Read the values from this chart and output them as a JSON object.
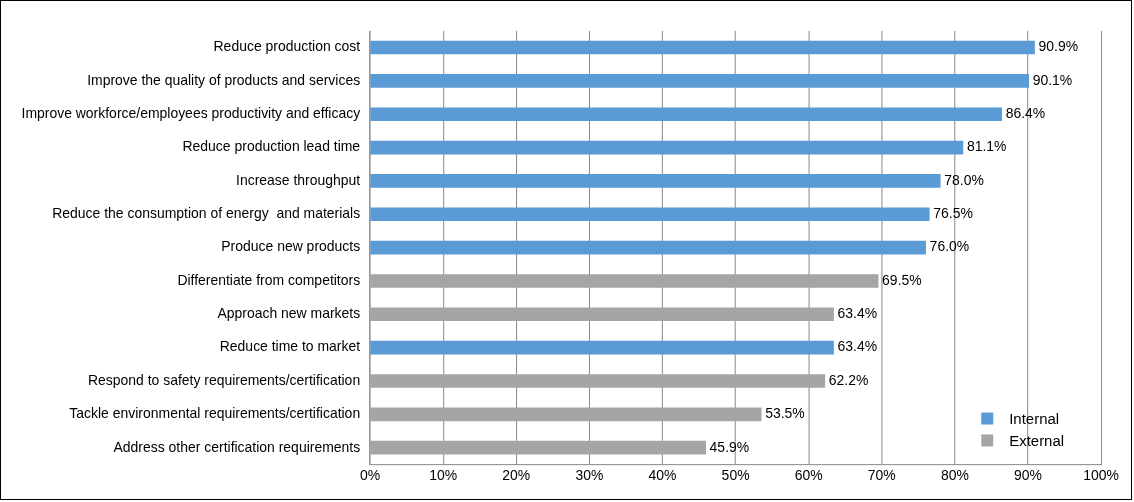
{
  "chart_data": {
    "type": "bar",
    "orientation": "horizontal",
    "categories": [
      "Reduce production cost",
      "Improve the quality of products and services",
      "Improve workforce/employees productivity and efficacy",
      "Reduce production lead time",
      "Increase throughput",
      "Reduce the consumption of energy  and materials",
      "Produce new products",
      "Differentiate from competitors",
      "Approach new markets",
      "Reduce time to market",
      "Respond to safety requirements/certification",
      "Tackle environmental requirements/certification",
      "Address other certification requirements"
    ],
    "series": [
      {
        "name": "Internal",
        "color": "#5b9bd5",
        "values": [
          90.9,
          90.1,
          86.4,
          81.1,
          78.0,
          76.5,
          76.0,
          null,
          null,
          63.4,
          null,
          null,
          null
        ],
        "value_labels": [
          "90.9%",
          "90.1%",
          "86.4%",
          "81.1%",
          "78.0%",
          "76.5%",
          "76.0%",
          null,
          null,
          "63.4%",
          null,
          null,
          null
        ]
      },
      {
        "name": "External",
        "color": "#a5a5a5",
        "values": [
          null,
          null,
          null,
          null,
          null,
          null,
          null,
          69.5,
          63.4,
          null,
          62.2,
          53.5,
          45.9
        ],
        "value_labels": [
          null,
          null,
          null,
          null,
          null,
          null,
          null,
          "69.5%",
          "63.4%",
          null,
          "62.2%",
          "53.5%",
          "45.9%"
        ]
      }
    ],
    "xlim": [
      0,
      100
    ],
    "xticks": [
      {
        "value": 0,
        "label": "0%"
      },
      {
        "value": 10,
        "label": "10%"
      },
      {
        "value": 20,
        "label": "20%"
      },
      {
        "value": 30,
        "label": "30%"
      },
      {
        "value": 40,
        "label": "40%"
      },
      {
        "value": 50,
        "label": "50%"
      },
      {
        "value": 60,
        "label": "60%"
      },
      {
        "value": 70,
        "label": "70%"
      },
      {
        "value": 80,
        "label": "80%"
      },
      {
        "value": 90,
        "label": "90%"
      },
      {
        "value": 100,
        "label": "100%"
      }
    ],
    "grid": "x",
    "legend": "bottom right"
  }
}
